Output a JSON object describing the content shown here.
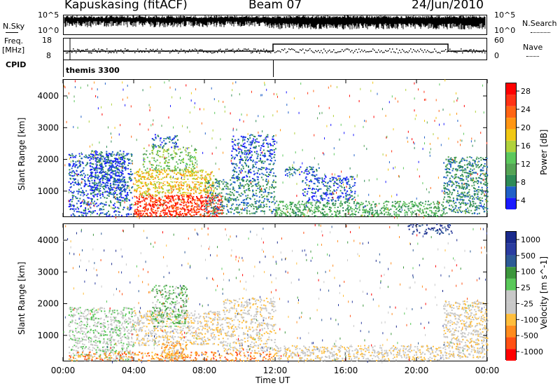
{
  "header": {
    "station": "Kapuskasing (fitACF)",
    "beam": "Beam 07",
    "date": "24/Jun/2010"
  },
  "top_panels": {
    "nsky_label": "N.Sky",
    "nsky_ticks": [
      "10^5",
      "10^0"
    ],
    "nsearch_label": "N.Search",
    "nsearch_ticks": [
      "10^5",
      "10^0"
    ],
    "freq_label": "Freq.",
    "freq_unit": "[MHz]",
    "freq_ticks": [
      "18",
      "8"
    ],
    "nave_label": "Nave",
    "nave_ticks": [
      "60",
      "0"
    ],
    "cpid_label": "CPID",
    "cpid_value": "themis 3300"
  },
  "colors": {
    "power_scale": [
      "#1a1aff",
      "#2060c8",
      "#2e8b57",
      "#55a455",
      "#5cc85c",
      "#b0d23c",
      "#f0c814",
      "#ff9614",
      "#ff6414",
      "#ff3214",
      "#ff0000"
    ],
    "velocity_scale": [
      "#ff0000",
      "#ff5014",
      "#ff8c1e",
      "#ffbe3c",
      "#c8c8c8",
      "#c8c8c8",
      "#5ac85a",
      "#3c963c",
      "#2d5a96",
      "#2a3ca0",
      "#1a2a8c"
    ]
  },
  "chart_data": [
    {
      "type": "heatmap",
      "title": "",
      "ylabel": "Slant Range [km]",
      "colorbar_label": "Power [dB]",
      "colorbar_ticks": [
        "28",
        "24",
        "20",
        "16",
        "12",
        "8",
        "4"
      ],
      "x_ticks": [
        "00:00",
        "04:00",
        "08:00",
        "12:00",
        "16:00",
        "20:00",
        "00:00"
      ],
      "y_ticks": [
        "4000",
        "3000",
        "2000",
        "1000"
      ],
      "xlim_hours": [
        0,
        24
      ],
      "ylim_km": [
        180,
        4530
      ],
      "regions": [
        {
          "t0": 0.3,
          "t1": 3.9,
          "r0": 220,
          "r1": 2200,
          "level": 1,
          "density": 0.5
        },
        {
          "t0": 1.5,
          "t1": 3.5,
          "r0": 900,
          "r1": 2300,
          "level": 1,
          "density": 0.6
        },
        {
          "t0": 4.0,
          "t1": 9.0,
          "r0": 220,
          "r1": 900,
          "level": 9,
          "density": 0.9
        },
        {
          "t0": 4.0,
          "t1": 8.5,
          "r0": 900,
          "r1": 1700,
          "level": 6,
          "density": 0.7
        },
        {
          "t0": 4.5,
          "t1": 7.5,
          "r0": 1600,
          "r1": 2400,
          "level": 4,
          "density": 0.4
        },
        {
          "t0": 5.0,
          "t1": 6.5,
          "r0": 2400,
          "r1": 2800,
          "level": 1,
          "density": 0.5
        },
        {
          "t0": 8.0,
          "t1": 12.0,
          "r0": 300,
          "r1": 1400,
          "level": 2,
          "density": 0.5
        },
        {
          "t0": 9.5,
          "t1": 12.0,
          "r0": 1400,
          "r1": 2800,
          "level": 1,
          "density": 0.5
        },
        {
          "t0": 12.0,
          "t1": 21.5,
          "r0": 220,
          "r1": 700,
          "level": 3,
          "density": 0.65
        },
        {
          "t0": 13.5,
          "t1": 16.5,
          "r0": 700,
          "r1": 1500,
          "level": 1,
          "density": 0.5
        },
        {
          "t0": 12.5,
          "t1": 14.5,
          "r0": 1500,
          "r1": 1800,
          "level": 1,
          "density": 0.5
        },
        {
          "t0": 21.5,
          "t1": 24.0,
          "r0": 300,
          "r1": 2100,
          "level": 2,
          "density": 0.65
        }
      ]
    },
    {
      "type": "heatmap",
      "title": "",
      "ylabel": "Slant Range [km]",
      "xlabel": "Time UT",
      "colorbar_label": "Velocity [m s^-1]",
      "colorbar_ticks": [
        "1000",
        "500",
        "100",
        "25",
        "-25",
        "-100",
        "-500",
        "-1000"
      ],
      "x_ticks": [
        "00:00",
        "04:00",
        "08:00",
        "12:00",
        "16:00",
        "20:00",
        "00:00"
      ],
      "y_ticks": [
        "4000",
        "3000",
        "2000",
        "1000"
      ],
      "xlim_hours": [
        0,
        24
      ],
      "ylim_km": [
        180,
        4530
      ],
      "regions": [
        {
          "t0": 0.3,
          "t1": 4.0,
          "r0": 220,
          "r1": 1900,
          "level": 5,
          "density": 0.55
        },
        {
          "t0": 0.3,
          "t1": 12.0,
          "r0": 220,
          "r1": 500,
          "level": 2,
          "density": 0.45
        },
        {
          "t0": 4.0,
          "t1": 9.0,
          "r0": 700,
          "r1": 1800,
          "level": 4,
          "density": 0.55
        },
        {
          "t0": 5.0,
          "t1": 7.0,
          "r0": 1300,
          "r1": 2600,
          "level": 6,
          "density": 0.55
        },
        {
          "t0": 5.5,
          "t1": 7.0,
          "r0": 220,
          "r1": 800,
          "level": 3,
          "density": 0.8
        },
        {
          "t0": 9.0,
          "t1": 12.0,
          "r0": 500,
          "r1": 2200,
          "level": 4,
          "density": 0.45
        },
        {
          "t0": 12.0,
          "t1": 21.5,
          "r0": 220,
          "r1": 700,
          "level": 4,
          "density": 0.55
        },
        {
          "t0": 21.5,
          "t1": 24.0,
          "r0": 300,
          "r1": 2100,
          "level": 4,
          "density": 0.6
        },
        {
          "t0": 19.5,
          "t1": 22.0,
          "r0": 4200,
          "r1": 4530,
          "level": 9,
          "density": 0.4
        }
      ]
    }
  ]
}
